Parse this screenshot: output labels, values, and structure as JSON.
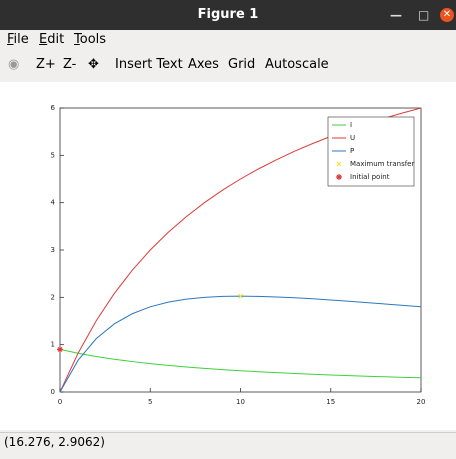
{
  "window": {
    "title": "Figure 1"
  },
  "menu": [
    "File",
    "Edit",
    "Tools"
  ],
  "toolbar": [
    "Z+",
    "Z-",
    "Insert Text",
    "Axes",
    "Grid",
    "Autoscale"
  ],
  "status": "(16.276, 2.9062)",
  "chart_data": {
    "type": "line",
    "x": [
      0,
      1,
      2,
      3,
      4,
      5,
      6,
      7,
      8,
      9,
      10,
      11,
      12,
      13,
      14,
      15,
      16,
      17,
      18,
      19,
      20
    ],
    "series": [
      {
        "name": "I",
        "color": "#3cd23c",
        "values": [
          0.9,
          0.818,
          0.75,
          0.692,
          0.643,
          0.6,
          0.5625,
          0.529,
          0.5,
          0.474,
          0.45,
          0.429,
          0.409,
          0.391,
          0.375,
          0.36,
          0.346,
          0.333,
          0.321,
          0.31,
          0.3
        ]
      },
      {
        "name": "U",
        "color": "#e03a3a",
        "values": [
          0,
          0.818,
          1.5,
          2.077,
          2.571,
          3,
          3.375,
          3.706,
          4,
          4.263,
          4.5,
          4.714,
          4.909,
          5.087,
          5.25,
          5.4,
          5.538,
          5.667,
          5.786,
          5.897,
          6
        ]
      },
      {
        "name": "P",
        "color": "#2b78c0",
        "values": [
          0,
          0.669,
          1.125,
          1.438,
          1.653,
          1.8,
          1.898,
          1.962,
          2,
          2.019,
          2.025,
          2.02,
          2.008,
          1.991,
          1.969,
          1.944,
          1.917,
          1.889,
          1.86,
          1.83,
          1.8
        ]
      }
    ],
    "points": [
      {
        "name": "Maximum transfer",
        "color": "#f2e23a",
        "marker": "x",
        "x": 10,
        "y": 2.025
      },
      {
        "name": "Initial point",
        "color": "#e03a3a",
        "marker": "star",
        "x": 0,
        "y": 0.9
      }
    ],
    "xlim": [
      0,
      20
    ],
    "xticks": [
      0,
      5,
      10,
      15,
      20
    ],
    "ylim": [
      0,
      6
    ],
    "yticks": [
      0,
      1,
      2,
      3,
      4,
      5,
      6
    ],
    "legend": "top-right"
  }
}
